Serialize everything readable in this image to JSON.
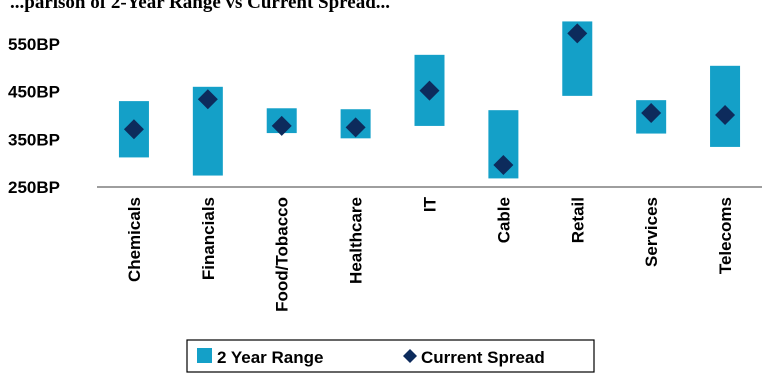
{
  "chart_data": {
    "type": "range-scatter",
    "title": "...parison of 2-Year Range vs Current Spread...",
    "categories": [
      "Chemicals",
      "Financials",
      "Food/Tobacco",
      "Healthcare",
      "IT",
      "Cable",
      "Retail",
      "Services",
      "Telecoms"
    ],
    "series": [
      {
        "name": "2 Year Range",
        "kind": "range-bar",
        "color": "#14a0c8",
        "low": [
          312,
          274,
          363,
          352,
          378,
          268,
          441,
          362,
          334
        ],
        "high": [
          430,
          460,
          415,
          413,
          527,
          411,
          597,
          432,
          504
        ]
      },
      {
        "name": "Current Spread",
        "kind": "diamond-marker",
        "color": "#0d2b5c",
        "values": [
          371,
          434,
          378,
          375,
          452,
          296,
          572,
          405,
          401
        ]
      }
    ],
    "y_ticks": [
      250,
      350,
      450,
      550
    ],
    "y_tick_labels": [
      "250BP",
      "350BP",
      "450BP",
      "550BP"
    ],
    "ylim": [
      250,
      600
    ],
    "grid": false,
    "legend_position": "bottom"
  }
}
